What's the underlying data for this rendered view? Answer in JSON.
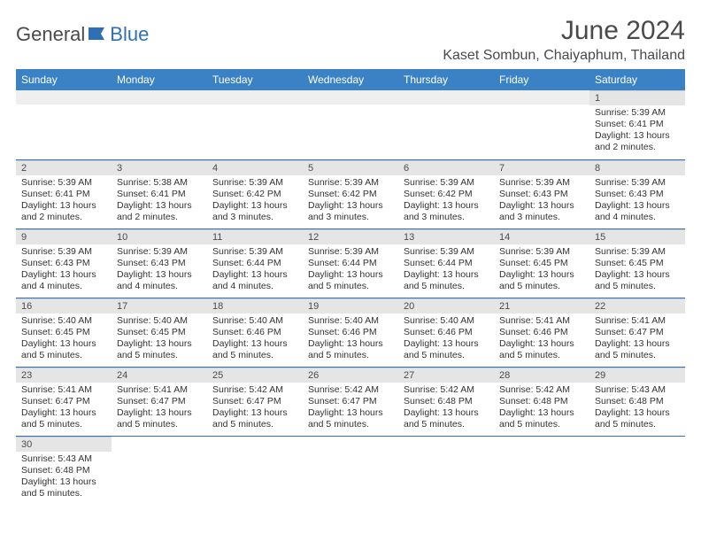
{
  "logo": {
    "text1": "General",
    "text2": "Blue"
  },
  "title": "June 2024",
  "location": "Kaset Sombun, Chaiyaphum, Thailand",
  "colors": {
    "header_bg": "#3b82c4",
    "header_text": "#ffffff",
    "daynum_bg": "#e5e5e5",
    "border": "#2f6fb5",
    "text": "#333333",
    "title_text": "#4a4a4a",
    "logo_blue": "#2f6fb5"
  },
  "weekdays": [
    "Sunday",
    "Monday",
    "Tuesday",
    "Wednesday",
    "Thursday",
    "Friday",
    "Saturday"
  ],
  "weeks": [
    [
      null,
      null,
      null,
      null,
      null,
      null,
      {
        "n": "1",
        "sunrise": "Sunrise: 5:39 AM",
        "sunset": "Sunset: 6:41 PM",
        "daylight": "Daylight: 13 hours and 2 minutes."
      }
    ],
    [
      {
        "n": "2",
        "sunrise": "Sunrise: 5:39 AM",
        "sunset": "Sunset: 6:41 PM",
        "daylight": "Daylight: 13 hours and 2 minutes."
      },
      {
        "n": "3",
        "sunrise": "Sunrise: 5:38 AM",
        "sunset": "Sunset: 6:41 PM",
        "daylight": "Daylight: 13 hours and 2 minutes."
      },
      {
        "n": "4",
        "sunrise": "Sunrise: 5:39 AM",
        "sunset": "Sunset: 6:42 PM",
        "daylight": "Daylight: 13 hours and 3 minutes."
      },
      {
        "n": "5",
        "sunrise": "Sunrise: 5:39 AM",
        "sunset": "Sunset: 6:42 PM",
        "daylight": "Daylight: 13 hours and 3 minutes."
      },
      {
        "n": "6",
        "sunrise": "Sunrise: 5:39 AM",
        "sunset": "Sunset: 6:42 PM",
        "daylight": "Daylight: 13 hours and 3 minutes."
      },
      {
        "n": "7",
        "sunrise": "Sunrise: 5:39 AM",
        "sunset": "Sunset: 6:43 PM",
        "daylight": "Daylight: 13 hours and 3 minutes."
      },
      {
        "n": "8",
        "sunrise": "Sunrise: 5:39 AM",
        "sunset": "Sunset: 6:43 PM",
        "daylight": "Daylight: 13 hours and 4 minutes."
      }
    ],
    [
      {
        "n": "9",
        "sunrise": "Sunrise: 5:39 AM",
        "sunset": "Sunset: 6:43 PM",
        "daylight": "Daylight: 13 hours and 4 minutes."
      },
      {
        "n": "10",
        "sunrise": "Sunrise: 5:39 AM",
        "sunset": "Sunset: 6:43 PM",
        "daylight": "Daylight: 13 hours and 4 minutes."
      },
      {
        "n": "11",
        "sunrise": "Sunrise: 5:39 AM",
        "sunset": "Sunset: 6:44 PM",
        "daylight": "Daylight: 13 hours and 4 minutes."
      },
      {
        "n": "12",
        "sunrise": "Sunrise: 5:39 AM",
        "sunset": "Sunset: 6:44 PM",
        "daylight": "Daylight: 13 hours and 5 minutes."
      },
      {
        "n": "13",
        "sunrise": "Sunrise: 5:39 AM",
        "sunset": "Sunset: 6:44 PM",
        "daylight": "Daylight: 13 hours and 5 minutes."
      },
      {
        "n": "14",
        "sunrise": "Sunrise: 5:39 AM",
        "sunset": "Sunset: 6:45 PM",
        "daylight": "Daylight: 13 hours and 5 minutes."
      },
      {
        "n": "15",
        "sunrise": "Sunrise: 5:39 AM",
        "sunset": "Sunset: 6:45 PM",
        "daylight": "Daylight: 13 hours and 5 minutes."
      }
    ],
    [
      {
        "n": "16",
        "sunrise": "Sunrise: 5:40 AM",
        "sunset": "Sunset: 6:45 PM",
        "daylight": "Daylight: 13 hours and 5 minutes."
      },
      {
        "n": "17",
        "sunrise": "Sunrise: 5:40 AM",
        "sunset": "Sunset: 6:45 PM",
        "daylight": "Daylight: 13 hours and 5 minutes."
      },
      {
        "n": "18",
        "sunrise": "Sunrise: 5:40 AM",
        "sunset": "Sunset: 6:46 PM",
        "daylight": "Daylight: 13 hours and 5 minutes."
      },
      {
        "n": "19",
        "sunrise": "Sunrise: 5:40 AM",
        "sunset": "Sunset: 6:46 PM",
        "daylight": "Daylight: 13 hours and 5 minutes."
      },
      {
        "n": "20",
        "sunrise": "Sunrise: 5:40 AM",
        "sunset": "Sunset: 6:46 PM",
        "daylight": "Daylight: 13 hours and 5 minutes."
      },
      {
        "n": "21",
        "sunrise": "Sunrise: 5:41 AM",
        "sunset": "Sunset: 6:46 PM",
        "daylight": "Daylight: 13 hours and 5 minutes."
      },
      {
        "n": "22",
        "sunrise": "Sunrise: 5:41 AM",
        "sunset": "Sunset: 6:47 PM",
        "daylight": "Daylight: 13 hours and 5 minutes."
      }
    ],
    [
      {
        "n": "23",
        "sunrise": "Sunrise: 5:41 AM",
        "sunset": "Sunset: 6:47 PM",
        "daylight": "Daylight: 13 hours and 5 minutes."
      },
      {
        "n": "24",
        "sunrise": "Sunrise: 5:41 AM",
        "sunset": "Sunset: 6:47 PM",
        "daylight": "Daylight: 13 hours and 5 minutes."
      },
      {
        "n": "25",
        "sunrise": "Sunrise: 5:42 AM",
        "sunset": "Sunset: 6:47 PM",
        "daylight": "Daylight: 13 hours and 5 minutes."
      },
      {
        "n": "26",
        "sunrise": "Sunrise: 5:42 AM",
        "sunset": "Sunset: 6:47 PM",
        "daylight": "Daylight: 13 hours and 5 minutes."
      },
      {
        "n": "27",
        "sunrise": "Sunrise: 5:42 AM",
        "sunset": "Sunset: 6:48 PM",
        "daylight": "Daylight: 13 hours and 5 minutes."
      },
      {
        "n": "28",
        "sunrise": "Sunrise: 5:42 AM",
        "sunset": "Sunset: 6:48 PM",
        "daylight": "Daylight: 13 hours and 5 minutes."
      },
      {
        "n": "29",
        "sunrise": "Sunrise: 5:43 AM",
        "sunset": "Sunset: 6:48 PM",
        "daylight": "Daylight: 13 hours and 5 minutes."
      }
    ],
    [
      {
        "n": "30",
        "sunrise": "Sunrise: 5:43 AM",
        "sunset": "Sunset: 6:48 PM",
        "daylight": "Daylight: 13 hours and 5 minutes."
      },
      null,
      null,
      null,
      null,
      null,
      null
    ]
  ]
}
